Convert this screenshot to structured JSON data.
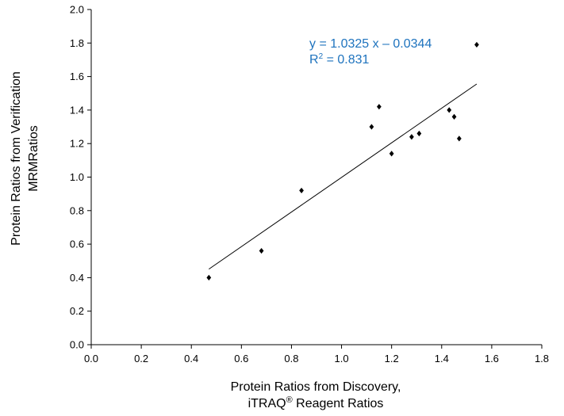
{
  "chart_data": {
    "type": "scatter",
    "xlabel_line1": "Protein Ratios from Discovery,",
    "xlabel_line2_main": "iTRAQ",
    "xlabel_line2_sup": "®",
    "xlabel_line2_rest": " Reagent Ratios",
    "ylabel_line1": "Protein Ratios from Verification",
    "ylabel_line2": "MRMRatios",
    "xlim": [
      0.0,
      1.8
    ],
    "ylim": [
      0.0,
      2.0
    ],
    "x_ticks": [
      "0.0",
      "0.2",
      "0.4",
      "0.6",
      "0.8",
      "1.0",
      "1.2",
      "1.4",
      "1.6",
      "1.8"
    ],
    "y_ticks": [
      "0.0",
      "0.2",
      "0.4",
      "0.6",
      "0.8",
      "1.0",
      "1.2",
      "1.4",
      "1.6",
      "1.8",
      "2.0"
    ],
    "grid": false,
    "points": [
      {
        "x": 0.47,
        "y": 0.4
      },
      {
        "x": 0.68,
        "y": 0.56
      },
      {
        "x": 0.84,
        "y": 0.92
      },
      {
        "x": 1.12,
        "y": 1.3
      },
      {
        "x": 1.15,
        "y": 1.42
      },
      {
        "x": 1.2,
        "y": 1.14
      },
      {
        "x": 1.28,
        "y": 1.24
      },
      {
        "x": 1.31,
        "y": 1.26
      },
      {
        "x": 1.43,
        "y": 1.4
      },
      {
        "x": 1.45,
        "y": 1.36
      },
      {
        "x": 1.47,
        "y": 1.23
      },
      {
        "x": 1.54,
        "y": 1.79
      }
    ],
    "trendline": {
      "slope": 1.0325,
      "intercept": -0.0344,
      "x_start": 0.47,
      "x_end": 1.54
    },
    "equation_text": "y = 1.0325 x – 0.0344",
    "r2_main": "R",
    "r2_sup": "2",
    "r2_value": " = 0.831",
    "annotation_color": "#1e73be",
    "marker_color": "#000000"
  }
}
